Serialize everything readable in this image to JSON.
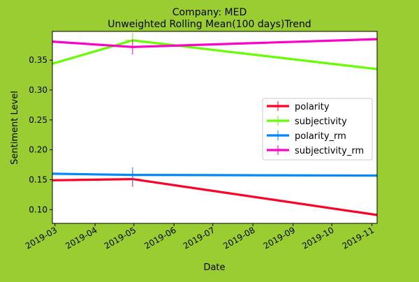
{
  "chart_data": {
    "type": "line",
    "title": "Company: MED",
    "subtitle": "Unweighted Rolling Mean(100 days)Trend",
    "xlabel": "Date",
    "ylabel": "Sentiment Level",
    "x_ticks": [
      "2019-03",
      "2019-04",
      "2019-05",
      "2019-06",
      "2019-07",
      "2019-08",
      "2019-09",
      "2019-10",
      "2019-11"
    ],
    "xlim": [
      "2019-02-27",
      "2019-11-05"
    ],
    "y_ticks": [
      0.1,
      0.15,
      0.2,
      0.25,
      0.3,
      0.35
    ],
    "ylim": [
      0.077,
      0.398
    ],
    "grid": false,
    "legend_position": "center-right",
    "series": [
      {
        "name": "polarity",
        "color": "#ff0028",
        "x": [
          "2019-02-27",
          "2019-04-30",
          "2019-11-05"
        ],
        "y": [
          0.149,
          0.151,
          0.091
        ],
        "marker_index": 1
      },
      {
        "name": "subjectivity",
        "color": "#66ff00",
        "x": [
          "2019-02-27",
          "2019-04-30",
          "2019-11-05"
        ],
        "y": [
          0.344,
          0.383,
          0.335
        ],
        "marker_index": 1
      },
      {
        "name": "polarity_rm",
        "color": "#0088ff",
        "x": [
          "2019-02-27",
          "2019-04-30",
          "2019-11-05"
        ],
        "y": [
          0.16,
          0.158,
          0.157
        ],
        "marker_index": 1
      },
      {
        "name": "subjectivity_rm",
        "color": "#ff00c8",
        "x": [
          "2019-02-27",
          "2019-04-30",
          "2019-11-05"
        ],
        "y": [
          0.381,
          0.372,
          0.385
        ],
        "marker_index": 1
      }
    ]
  }
}
